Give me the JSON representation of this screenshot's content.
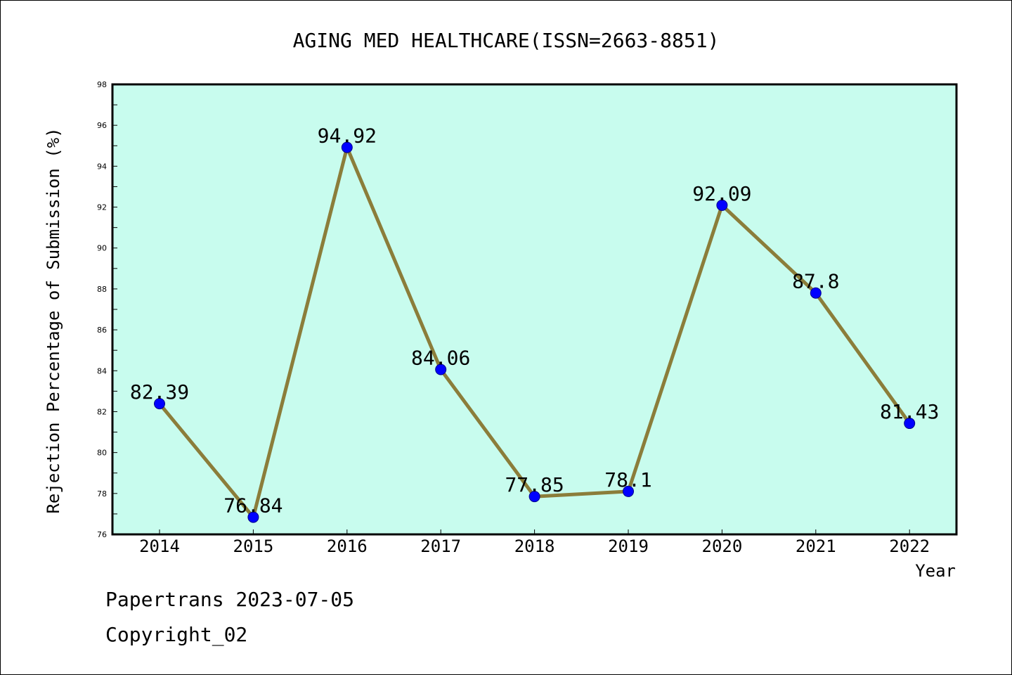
{
  "chart_data": {
    "type": "line",
    "title": "AGING MED HEALTHCARE(ISSN=2663-8851)",
    "xlabel": "Year",
    "ylabel": "Rejection Percentage of Submission (%)",
    "categories": [
      "2014",
      "2015",
      "2016",
      "2017",
      "2018",
      "2019",
      "2020",
      "2021",
      "2022"
    ],
    "values": [
      82.39,
      76.84,
      94.92,
      84.06,
      77.85,
      78.1,
      92.09,
      87.8,
      81.43
    ],
    "data_labels": [
      "82.39",
      "76.84",
      "94.92",
      "84.06",
      "77.85",
      "78.1",
      "92.09",
      "87.8",
      "81.43"
    ],
    "ylim": [
      76,
      98
    ],
    "yticks": [
      "76",
      "78",
      "80",
      "82",
      "84",
      "86",
      "88",
      "90",
      "92",
      "94",
      "96",
      "98"
    ],
    "grid": false,
    "legend": "none",
    "colors": {
      "plot_background": "#c8fcee",
      "line": "#8b7d3a",
      "marker": "#0000ff"
    }
  },
  "footer": {
    "line1": "Papertrans 2023-07-05",
    "line2": "Copyright_02"
  }
}
